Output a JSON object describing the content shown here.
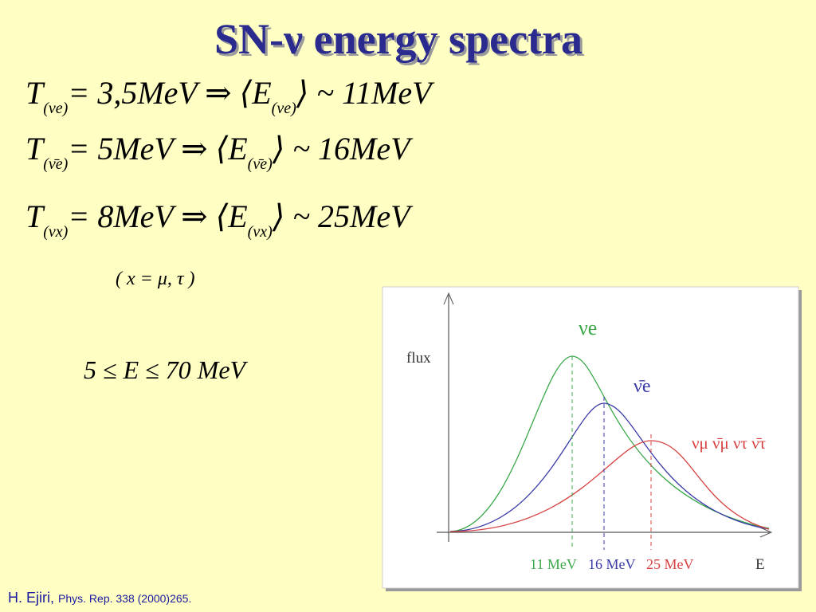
{
  "title": "SN-ν energy spectra",
  "equations": [
    {
      "lhs": "T",
      "lhs_sub": "(νe)",
      "mid": "= 3,5MeV ⇒ ⟨E",
      "mid_sub": "(νe)",
      "rhs": "⟩ ~ 11MeV"
    },
    {
      "lhs": "T",
      "lhs_sub": "(ν̄e)",
      "mid": "= 5MeV ⇒ ⟨E",
      "mid_sub": "(ν̄e)",
      "rhs": "⟩ ~ 16MeV"
    },
    {
      "lhs": "T",
      "lhs_sub": "(νx)",
      "mid": "= 8MeV ⇒ ⟨E",
      "mid_sub": "(νx)",
      "rhs": "⟩ ~ 25MeV"
    }
  ],
  "flavors_note": "( x = μ, τ )",
  "energy_range": "5 ≤ E ≤ 70  MeV",
  "figure": {
    "y_label": "flux",
    "x_label": "E",
    "curve_labels": [
      "νe",
      "ν̄e",
      "νμ  ν̄μ  ντ  ν̄τ"
    ],
    "peak_labels": [
      "11 MeV",
      "16 MeV",
      "25 MeV"
    ]
  },
  "citation": {
    "author": "H. Ejiri,",
    "reference": "Phys. Rep. 338 (2000)265."
  }
}
